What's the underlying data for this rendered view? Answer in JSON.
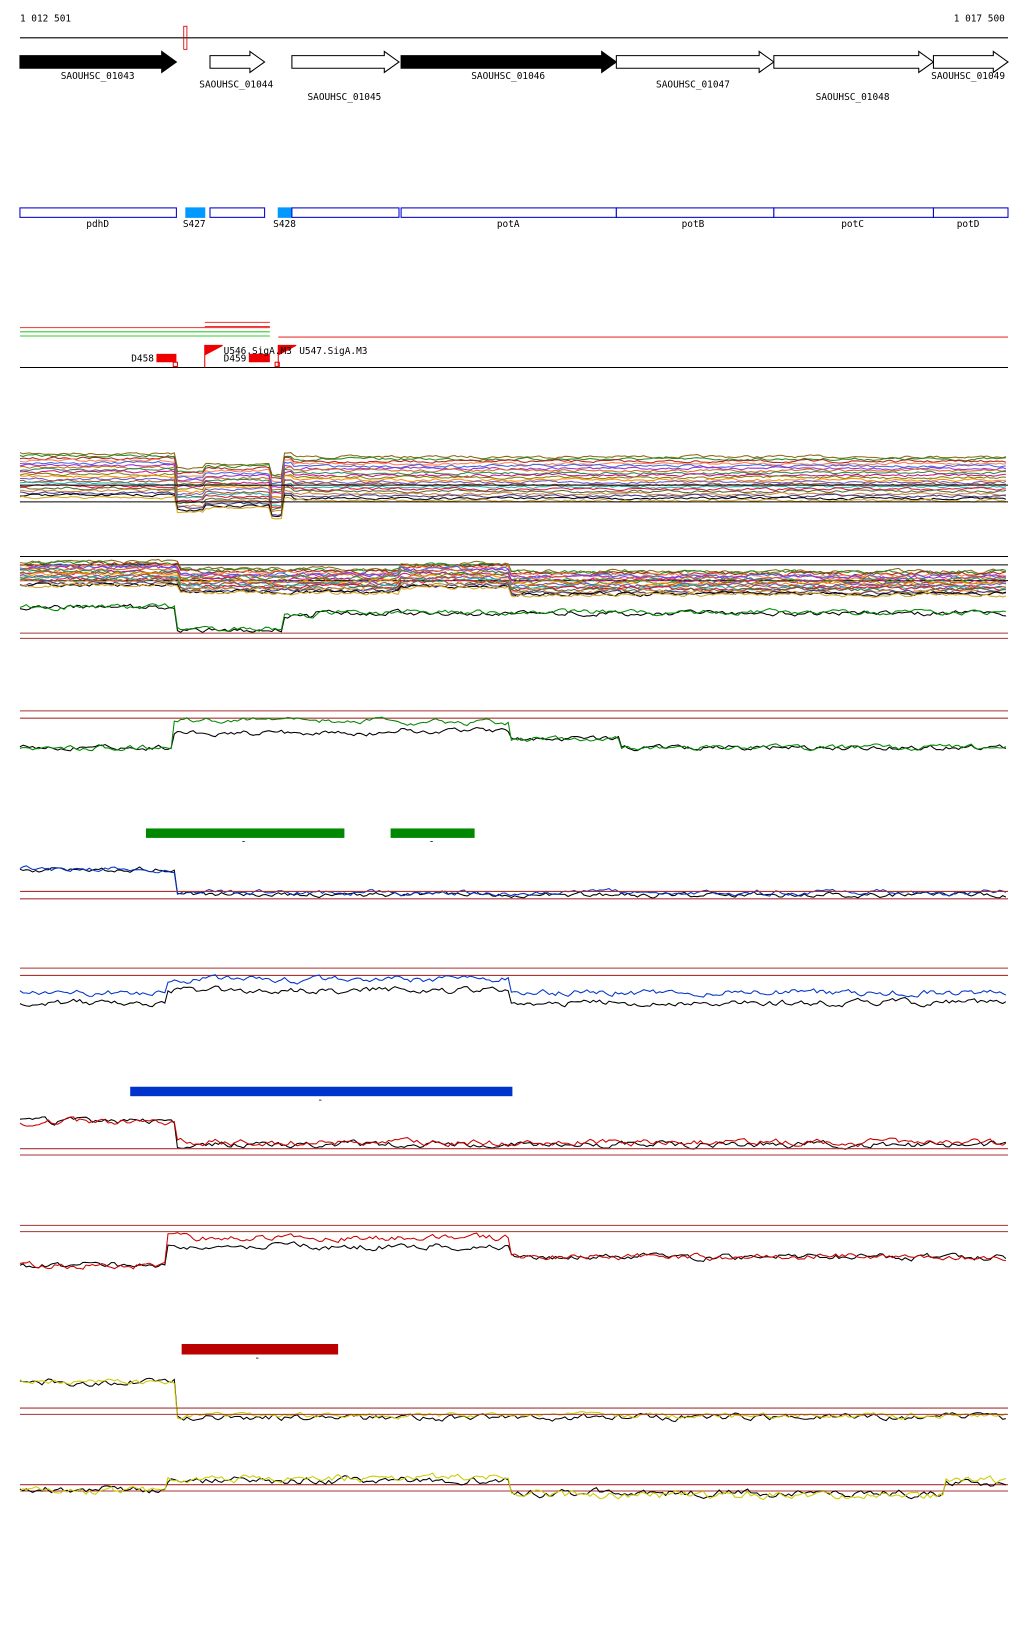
{
  "ruler": {
    "start": "1 012 501",
    "end": "1 017 500"
  },
  "genes": [
    "SAOUHSC_01043",
    "SAOUHSC_01044",
    "SAOUHSC_01045",
    "SAOUHSC_01046",
    "SAOUHSC_01047",
    "SAOUHSC_01048",
    "SAOUHSC_01049"
  ],
  "segments": [
    "pdhD",
    "S427",
    "S428",
    "potA",
    "potB",
    "potC",
    "potD"
  ],
  "annotations": [
    "D458",
    "D459",
    "U546.SigA.M3",
    "U547.SigA.M3"
  ],
  "bar_labels": [
    "-",
    "-",
    "-",
    "-"
  ]
}
